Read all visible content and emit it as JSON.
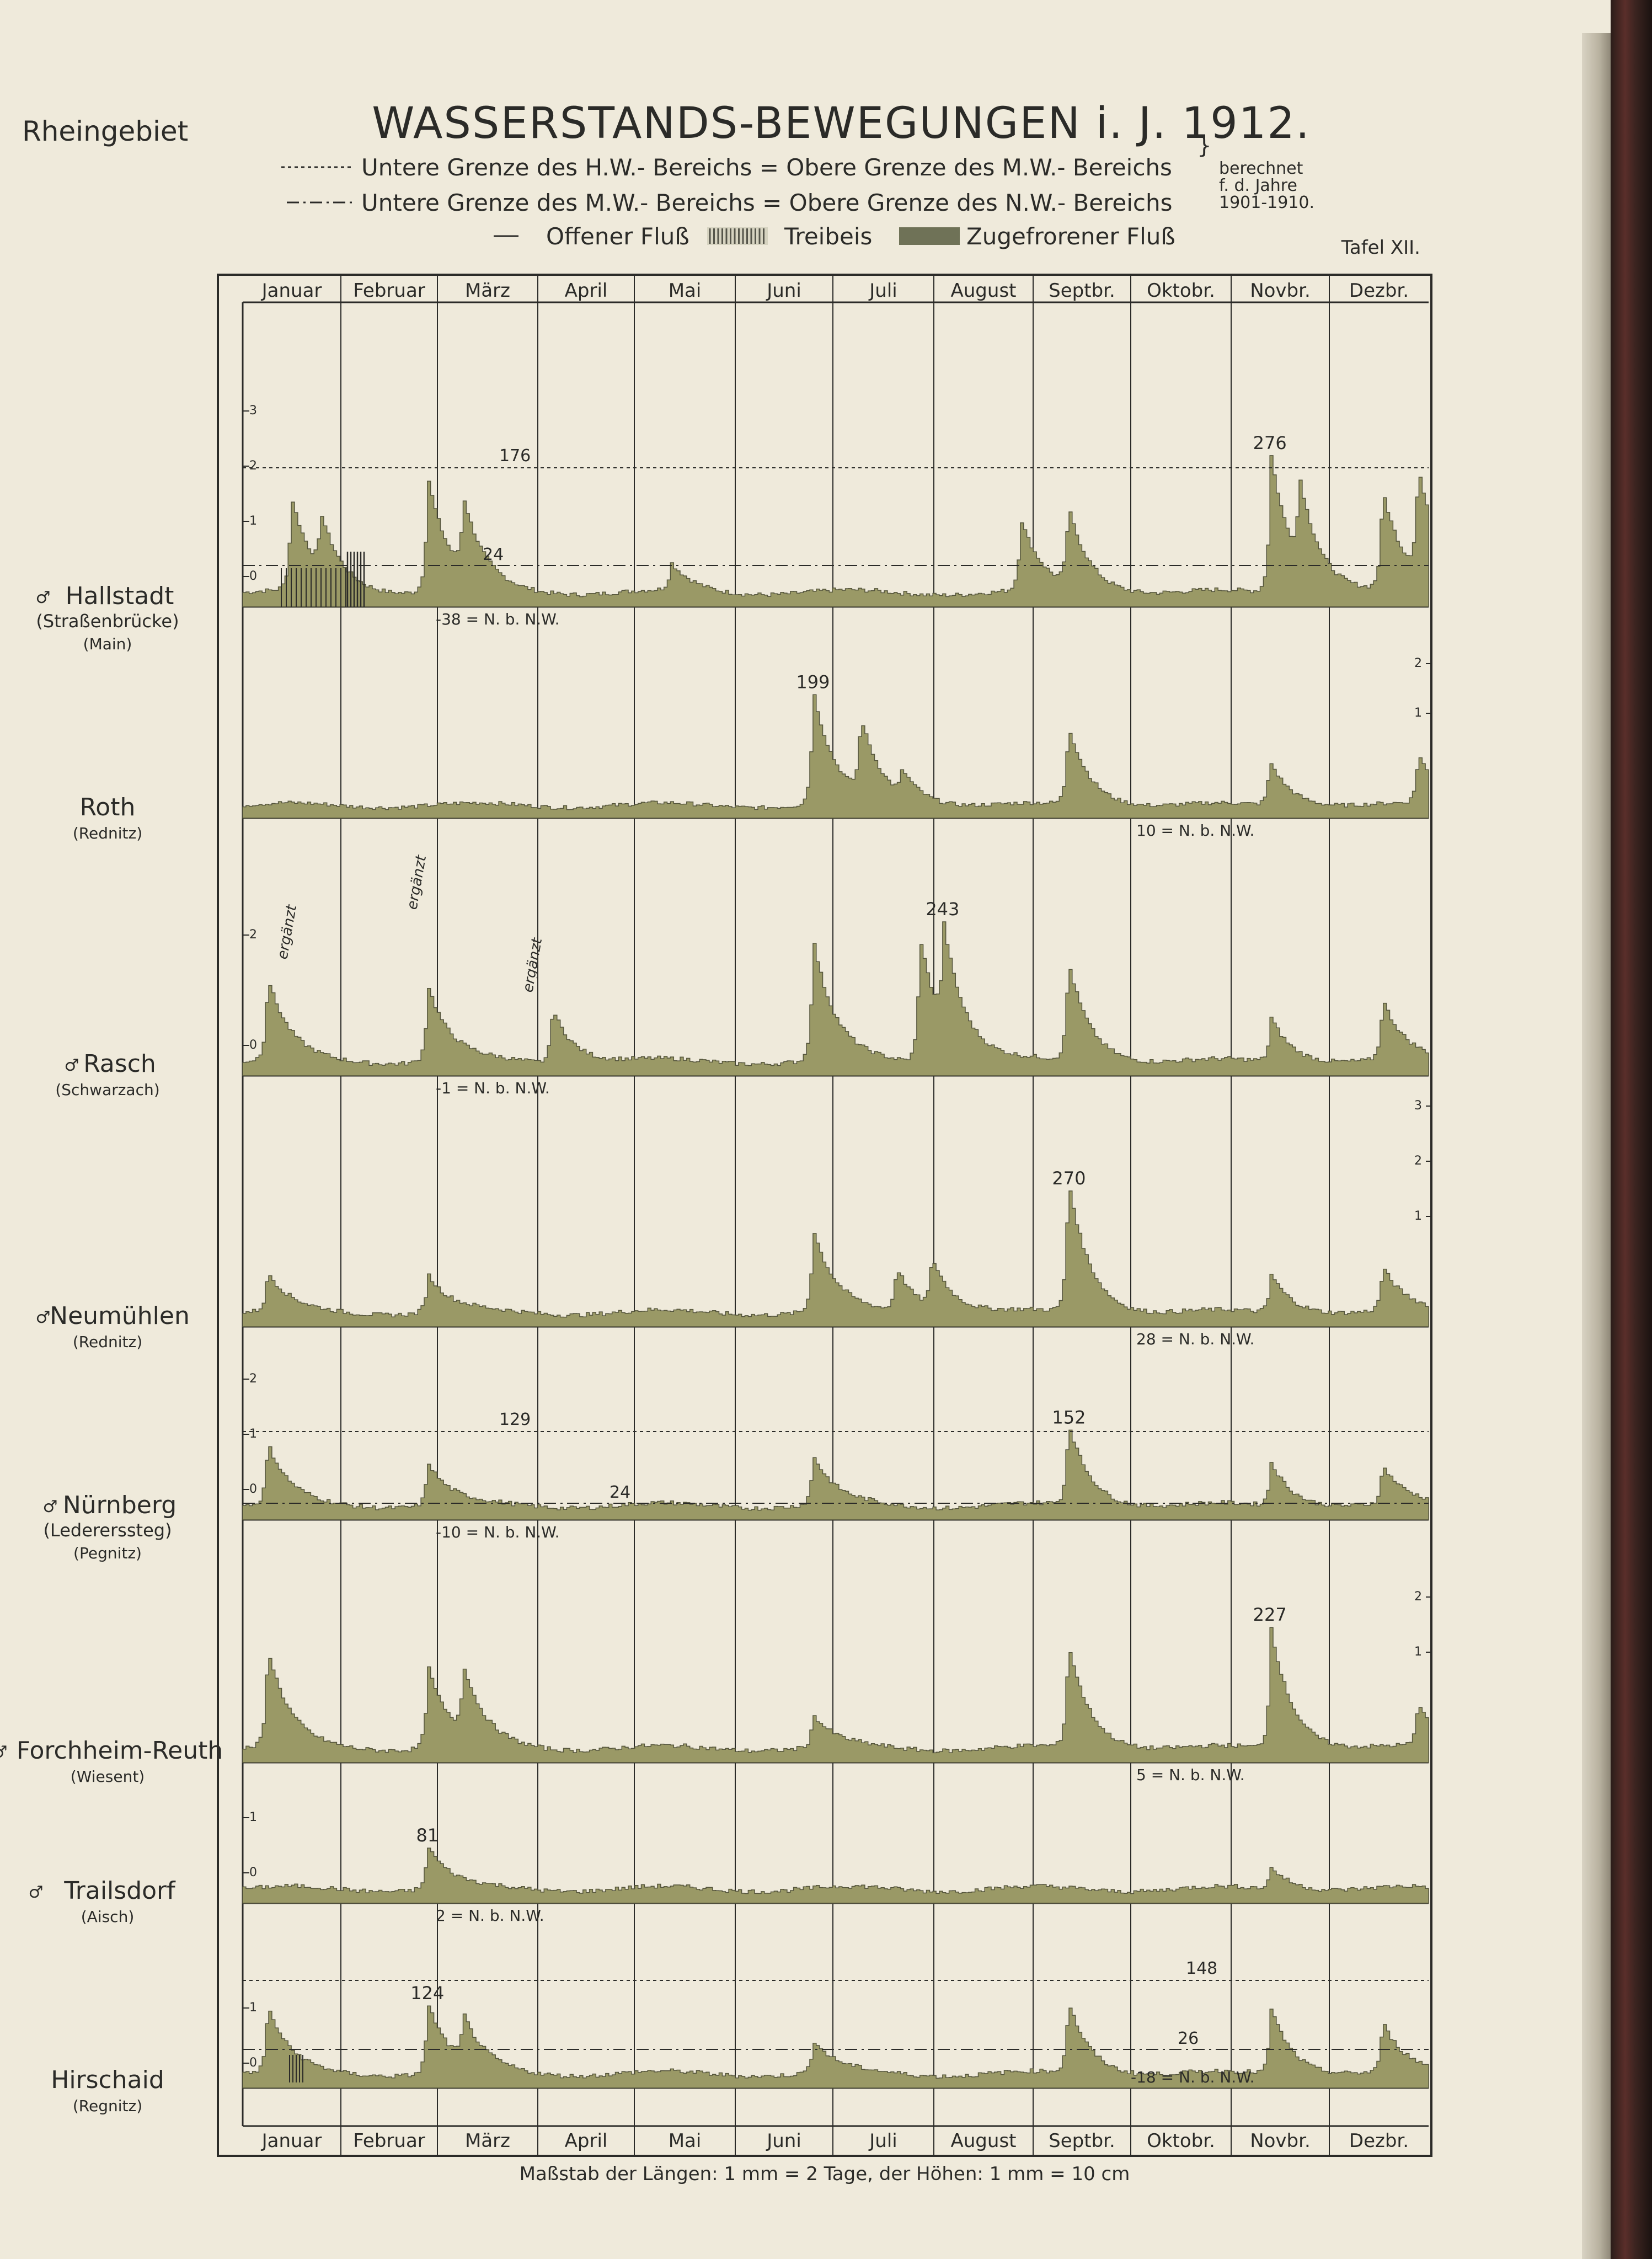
{
  "region": "Rheingebiet",
  "title": "WASSERSTANDS-BEWEGUNGEN i. J. 1912.",
  "legend": {
    "hw_line": "Untere Grenze des H.W.- Bereichs = Obere Grenze des M.W.- Bereichs",
    "nw_line": "Untere Grenze des M.W.- Bereichs = Obere Grenze des N.W.- Bereichs",
    "computed_1": "berechnet",
    "computed_2": "f. d. Jahre",
    "computed_3": "1901-1910.",
    "open_river": "Offener Fluß",
    "drift_ice": "Treibeis",
    "frozen_river": "Zugefrorener Fluß"
  },
  "plate": "Tafel XII.",
  "scale_note": "Maßstab der Längen: 1 mm = 2 Tage, der Höhen: 1 mm = 10 cm",
  "colors": {
    "fill": "#9a9966",
    "ink": "#2b2b28",
    "paper": "#efeadb"
  },
  "chart_data": {
    "type": "area",
    "months": [
      "Januar",
      "Februar",
      "März",
      "April",
      "Mai",
      "Juni",
      "Juli",
      "August",
      "Septbr.",
      "Oktobr.",
      "Novbr.",
      "Dezbr."
    ],
    "months_bottom": [
      "Januar",
      "Februar",
      "März",
      "April",
      "Mai",
      "Juni",
      "Juli",
      "August",
      "Septbr.",
      "Oktobr.",
      "Novbr.",
      "Dezbr."
    ],
    "stations": [
      {
        "name": "Hallstadt",
        "sub": "(Straßenbrücke)",
        "river": "(Main)",
        "scale_ticks": [
          "3",
          "2",
          "1",
          "0"
        ],
        "hw_label": "176",
        "nw_label": "24",
        "base_label": "-38 = N. b. N.W.",
        "peak_label": "276",
        "peaks": [
          [
            0.04,
            1.7
          ],
          [
            0.065,
            1.0
          ],
          [
            0.155,
            2.1
          ],
          [
            0.185,
            1.3
          ],
          [
            0.36,
            0.5
          ],
          [
            0.655,
            1.3
          ],
          [
            0.695,
            1.4
          ],
          [
            0.866,
            2.5
          ],
          [
            0.89,
            1.5
          ],
          [
            0.96,
            1.8
          ],
          [
            0.99,
            1.9
          ]
        ]
      },
      {
        "name": "Roth",
        "sub": "",
        "river": "(Rednitz)",
        "scale_ticks": [
          "2",
          "1"
        ],
        "base_label": "10 = N. b. N.W.",
        "peak_label": "199",
        "peaks": [
          [
            0.48,
            2.3
          ],
          [
            0.52,
            1.5
          ],
          [
            0.555,
            0.5
          ],
          [
            0.695,
            1.6
          ],
          [
            0.865,
            0.9
          ],
          [
            0.99,
            1.0
          ]
        ]
      },
      {
        "name": "Rasch",
        "sub": "",
        "river": "(Schwarzach)",
        "scale_ticks": [
          "2",
          "0"
        ],
        "annotations": [
          "ergänzt",
          "ergänzt",
          "ergänzt"
        ],
        "base_label": "-1 = N. b. N.W.",
        "peak_label": "243",
        "peaks": [
          [
            0.02,
            1.5
          ],
          [
            0.155,
            1.4
          ],
          [
            0.26,
            1.0
          ],
          [
            0.48,
            2.2
          ],
          [
            0.57,
            2.3
          ],
          [
            0.59,
            1.8
          ],
          [
            0.695,
            1.8
          ],
          [
            0.866,
            0.8
          ],
          [
            0.96,
            1.1
          ]
        ]
      },
      {
        "name": "Neumühlen",
        "sub": "",
        "river": "(Rednitz)",
        "scale_ticks": [
          "3",
          "2",
          "1"
        ],
        "base_label": "28 = N. b. N.W.",
        "peak_label": "270",
        "peaks": [
          [
            0.02,
            0.7
          ],
          [
            0.155,
            0.7
          ],
          [
            0.48,
            1.5
          ],
          [
            0.55,
            0.8
          ],
          [
            0.58,
            0.9
          ],
          [
            0.695,
            2.4
          ],
          [
            0.866,
            0.7
          ],
          [
            0.96,
            0.8
          ]
        ]
      },
      {
        "name": "Nürnberg",
        "sub": "(Ledererssteg)",
        "river": "(Pegnitz)",
        "scale_ticks": [
          "2",
          "1",
          "0"
        ],
        "hw_label": "129",
        "nw_label": "24",
        "base_label": "-10 = N. b. N.W.",
        "peak_label": "152",
        "peaks": [
          [
            0.02,
            1.1
          ],
          [
            0.155,
            0.8
          ],
          [
            0.48,
            0.9
          ],
          [
            0.695,
            1.5
          ],
          [
            0.866,
            0.8
          ],
          [
            0.96,
            0.7
          ]
        ]
      },
      {
        "name": "Forchheim-Reuth",
        "sub": "",
        "river": "(Wiesent)",
        "scale_ticks": [
          "2",
          "1"
        ],
        "base_label": "5 = N. b. N.W.",
        "peak_label": "227",
        "peaks": [
          [
            0.02,
            1.8
          ],
          [
            0.155,
            1.5
          ],
          [
            0.185,
            1.2
          ],
          [
            0.48,
            0.6
          ],
          [
            0.695,
            1.9
          ],
          [
            0.866,
            2.2
          ],
          [
            0.99,
            0.8
          ]
        ]
      },
      {
        "name": "Trailsdorf",
        "sub": "",
        "river": "(Aisch)",
        "scale_ticks": [
          "1",
          "0"
        ],
        "base_label": "2 = N. b. N.W.",
        "peak_label": "81",
        "peaks": [
          [
            0.155,
            0.8
          ],
          [
            0.866,
            0.4
          ]
        ]
      },
      {
        "name": "Hirschaid",
        "sub": "",
        "river": "(Regnitz)",
        "scale_ticks": [
          "1",
          "0"
        ],
        "hw_label": "148",
        "nw_label": "26",
        "base_label": "-18 = N. b. N.W.",
        "peak_label": "124",
        "peaks": [
          [
            0.02,
            1.2
          ],
          [
            0.155,
            1.3
          ],
          [
            0.185,
            0.8
          ],
          [
            0.48,
            0.6
          ],
          [
            0.695,
            1.3
          ],
          [
            0.866,
            1.2
          ],
          [
            0.96,
            0.9
          ]
        ]
      }
    ]
  }
}
